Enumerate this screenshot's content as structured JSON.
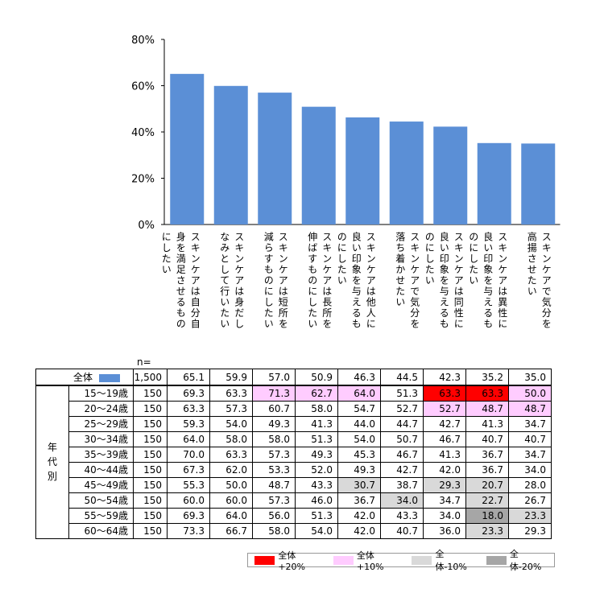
{
  "chart_data": {
    "type": "bar",
    "categories": [
      "スキンケアは自分自身を満足させるものにしたい",
      "スキンケアは身だしなみとして行いたい",
      "スキンケアは短所を減らすものにしたい",
      "スキンケアは長所を伸ばすものにしたい",
      "スキンケアは他人に良い印象を与えるものにしたい",
      "スキンケアで気分を落ち着かせたい",
      "スキンケアは同性に良い印象を与えるものにしたい",
      "スキンケアは異性に良い印象を与えるものにしたい",
      "スキンケアで気分を高揚させたい"
    ],
    "label_lines": [
      [
        "スキンケアは自分自",
        "身を満足させるもの",
        "にしたい"
      ],
      [
        "スキンケアは身だし",
        "なみとして行いたい"
      ],
      [
        "スキンケアは短所を",
        "減らすものにしたい"
      ],
      [
        "スキンケアは長所を",
        "伸ばすものにしたい"
      ],
      [
        "スキンケアは他人に",
        "良い印象を与えるも",
        "のにしたい"
      ],
      [
        "スキンケアで気分を",
        "落ち着かせたい"
      ],
      [
        "スキンケアは同性に",
        "良い印象を与えるも",
        "のにしたい"
      ],
      [
        "スキンケアは異性に",
        "良い印象を与えるも",
        "のにしたい"
      ],
      [
        "スキンケアで気分を",
        "高揚させたい"
      ]
    ],
    "values": [
      65.1,
      59.9,
      57.0,
      50.9,
      46.3,
      44.5,
      42.3,
      35.2,
      35.0
    ],
    "ylim": [
      0,
      80
    ],
    "yticks": [
      "0%",
      "20%",
      "40%",
      "60%",
      "80%"
    ],
    "bar_color": "#5b8fd6"
  },
  "table": {
    "n_header": "n=",
    "group_label": "年代別",
    "total": {
      "label": "全体",
      "n": "1,500",
      "values": [
        "65.1",
        "59.9",
        "57.0",
        "50.9",
        "46.3",
        "44.5",
        "42.3",
        "35.2",
        "35.0"
      ]
    },
    "rows": [
      {
        "label": "15～19歳",
        "n": "150",
        "values": [
          "69.3",
          "63.3",
          "71.3",
          "62.7",
          "64.0",
          "51.3",
          "63.3",
          "63.3",
          "50.0"
        ],
        "hl": [
          "",
          "",
          "pink",
          "pink",
          "pink",
          "",
          "red",
          "red",
          "pink"
        ]
      },
      {
        "label": "20～24歳",
        "n": "150",
        "values": [
          "63.3",
          "57.3",
          "60.7",
          "58.0",
          "54.7",
          "52.7",
          "52.7",
          "48.7",
          "48.7"
        ],
        "hl": [
          "",
          "",
          "",
          "",
          "",
          "",
          "pink",
          "pink",
          "pink"
        ]
      },
      {
        "label": "25～29歳",
        "n": "150",
        "values": [
          "59.3",
          "54.0",
          "49.3",
          "41.3",
          "44.0",
          "44.7",
          "42.7",
          "41.3",
          "34.7"
        ],
        "hl": [
          "",
          "",
          "",
          "",
          "",
          "",
          "",
          "",
          ""
        ]
      },
      {
        "label": "30～34歳",
        "n": "150",
        "values": [
          "64.0",
          "58.0",
          "58.0",
          "51.3",
          "54.0",
          "50.7",
          "46.7",
          "40.7",
          "40.7"
        ],
        "hl": [
          "",
          "",
          "",
          "",
          "",
          "",
          "",
          "",
          ""
        ]
      },
      {
        "label": "35～39歳",
        "n": "150",
        "values": [
          "70.0",
          "63.3",
          "57.3",
          "49.3",
          "45.3",
          "46.7",
          "41.3",
          "36.7",
          "34.7"
        ],
        "hl": [
          "",
          "",
          "",
          "",
          "",
          "",
          "",
          "",
          ""
        ]
      },
      {
        "label": "40～44歳",
        "n": "150",
        "values": [
          "67.3",
          "62.0",
          "53.3",
          "52.0",
          "49.3",
          "42.7",
          "42.0",
          "36.7",
          "34.0"
        ],
        "hl": [
          "",
          "",
          "",
          "",
          "",
          "",
          "",
          "",
          ""
        ]
      },
      {
        "label": "45～49歳",
        "n": "150",
        "values": [
          "55.3",
          "50.0",
          "48.7",
          "43.3",
          "30.7",
          "38.7",
          "29.3",
          "20.7",
          "28.0"
        ],
        "hl": [
          "",
          "",
          "",
          "",
          "lgray",
          "",
          "lgray",
          "lgray",
          ""
        ]
      },
      {
        "label": "50～54歳",
        "n": "150",
        "values": [
          "60.0",
          "60.0",
          "57.3",
          "46.0",
          "36.7",
          "34.0",
          "34.7",
          "22.7",
          "26.7"
        ],
        "hl": [
          "",
          "",
          "",
          "",
          "",
          "lgray",
          "",
          "lgray",
          ""
        ]
      },
      {
        "label": "55～59歳",
        "n": "150",
        "values": [
          "69.3",
          "64.0",
          "56.0",
          "51.3",
          "42.0",
          "43.3",
          "34.0",
          "18.0",
          "23.3"
        ],
        "hl": [
          "",
          "",
          "",
          "",
          "",
          "",
          "",
          "gray",
          "lgray"
        ]
      },
      {
        "label": "60～64歳",
        "n": "150",
        "values": [
          "73.3",
          "66.7",
          "58.0",
          "54.0",
          "42.0",
          "40.7",
          "36.0",
          "23.3",
          "29.3"
        ],
        "hl": [
          "",
          "",
          "",
          "",
          "",
          "",
          "",
          "lgray",
          ""
        ]
      }
    ]
  },
  "legend": [
    {
      "label": "全体+20%",
      "color": "#ff0000"
    },
    {
      "label": "全体+10%",
      "color": "#ffccff"
    },
    {
      "label": "全体-10%",
      "color": "#d9d9d9"
    },
    {
      "label": "全体-20%",
      "color": "#a6a6a6"
    }
  ]
}
